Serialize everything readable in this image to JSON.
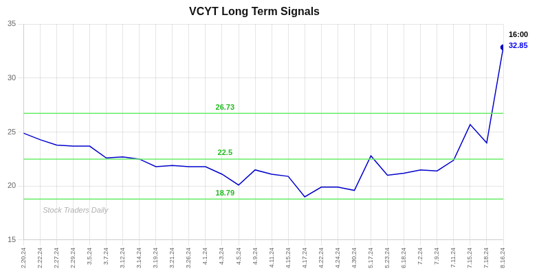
{
  "chart_data": {
    "type": "line",
    "title": "VCYT Long Term Signals",
    "categories": [
      "2.20.24",
      "2.22.24",
      "2.27.24",
      "2.29.24",
      "3.5.24",
      "3.7.24",
      "3.12.24",
      "3.14.24",
      "3.19.24",
      "3.21.24",
      "3.26.24",
      "4.1.24",
      "4.3.24",
      "4.5.24",
      "4.9.24",
      "4.11.24",
      "4.15.24",
      "4.17.24",
      "4.22.24",
      "4.24.24",
      "4.30.24",
      "5.17.24",
      "5.23.24",
      "6.18.24",
      "7.2.24",
      "7.9.24",
      "7.11.24",
      "7.15.24",
      "7.18.24",
      "8.16.24"
    ],
    "values": [
      24.9,
      24.3,
      23.8,
      23.7,
      23.7,
      22.6,
      22.7,
      22.5,
      21.8,
      21.9,
      21.8,
      21.8,
      21.1,
      20.1,
      21.5,
      21.1,
      20.9,
      19.0,
      19.9,
      19.9,
      19.6,
      22.8,
      21.0,
      21.2,
      21.5,
      21.4,
      22.4,
      25.7,
      24.0,
      32.85
    ],
    "color": "#0000cc",
    "ylim": [
      15,
      35
    ],
    "yticks": [
      15,
      20,
      25,
      30,
      35
    ],
    "grid": true,
    "hlines": [
      {
        "y": 26.73,
        "label": "26.73",
        "color": "#66ee66",
        "label_color": "#22bb22"
      },
      {
        "y": 22.5,
        "label": "22.5",
        "color": "#66ee66",
        "label_color": "#22bb22"
      },
      {
        "y": 18.79,
        "label": "18.79",
        "color": "#66ee66",
        "label_color": "#22bb22"
      }
    ],
    "annotations": [
      {
        "text": "16:00",
        "color": "#000000"
      },
      {
        "text": "32.85",
        "color": "#0000ee"
      }
    ],
    "watermark": {
      "text": "Stock Traders Daily",
      "color": "#b0b0b0"
    }
  }
}
